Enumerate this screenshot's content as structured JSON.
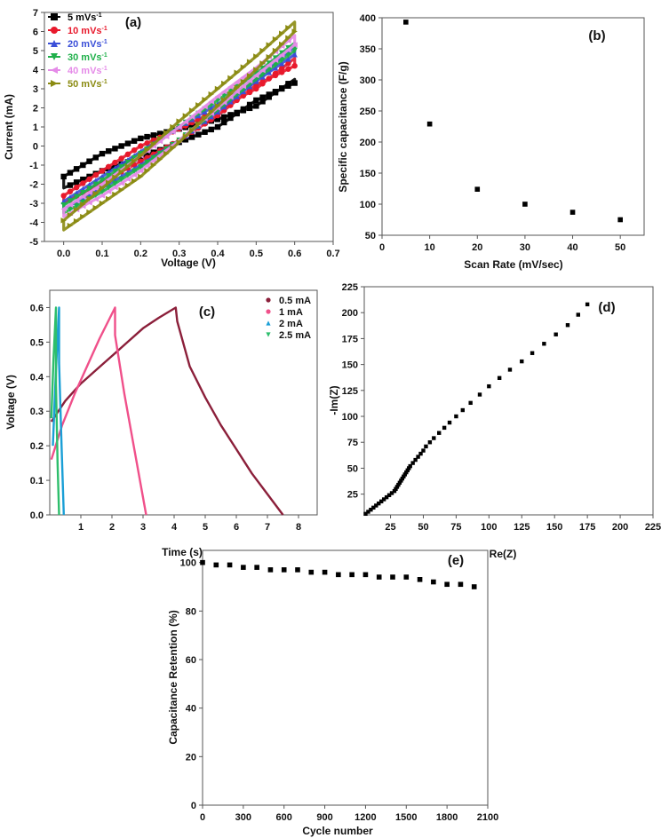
{
  "chart_data": [
    {
      "id": "a",
      "type": "line",
      "panel_label": "(a)",
      "xlabel": "Voltage (V)",
      "ylabel": "Current (mA)",
      "xlim": [
        -0.05,
        0.7
      ],
      "ylim": [
        -5,
        7
      ],
      "xticks": [
        "0.0",
        "0.1",
        "0.2",
        "0.3",
        "0.4",
        "0.5",
        "0.6",
        "0.7"
      ],
      "yticks": [
        "-5",
        "-4",
        "-3",
        "-2",
        "-1",
        "0",
        "1",
        "2",
        "3",
        "4",
        "5",
        "6",
        "7"
      ],
      "legend_position": "top-left",
      "series": [
        {
          "name": "5 mVs",
          "sup": "-1",
          "color": "#000000",
          "marker": "square",
          "upper": [
            [
              0.0,
              -1.6
            ],
            [
              0.1,
              -0.4
            ],
            [
              0.2,
              0.4
            ],
            [
              0.3,
              0.9
            ],
            [
              0.4,
              1.4
            ],
            [
              0.5,
              2.1
            ],
            [
              0.6,
              3.5
            ]
          ],
          "lower": [
            [
              0.6,
              3.3
            ],
            [
              0.5,
              2.4
            ],
            [
              0.4,
              1.0
            ],
            [
              0.3,
              0.2
            ],
            [
              0.2,
              -0.6
            ],
            [
              0.1,
              -1.3
            ],
            [
              0.0,
              -2.2
            ]
          ]
        },
        {
          "name": "10 mVs",
          "sup": "-1",
          "color": "#e8192c",
          "marker": "circle",
          "upper": [
            [
              0.0,
              -2.6
            ],
            [
              0.1,
              -1.3
            ],
            [
              0.2,
              0.0
            ],
            [
              0.3,
              0.9
            ],
            [
              0.4,
              1.9
            ],
            [
              0.5,
              3.0
            ],
            [
              0.6,
              4.6
            ]
          ],
          "lower": [
            [
              0.6,
              4.2
            ],
            [
              0.5,
              3.2
            ],
            [
              0.4,
              1.6
            ],
            [
              0.3,
              0.3
            ],
            [
              0.2,
              -0.8
            ],
            [
              0.1,
              -1.9
            ],
            [
              0.0,
              -3.0
            ]
          ]
        },
        {
          "name": "20 mVs",
          "sup": "-1",
          "color": "#3b4fd8",
          "marker": "triangle-up",
          "upper": [
            [
              0.0,
              -2.9
            ],
            [
              0.1,
              -1.6
            ],
            [
              0.2,
              -0.3
            ],
            [
              0.3,
              1.0
            ],
            [
              0.4,
              2.2
            ],
            [
              0.5,
              3.5
            ],
            [
              0.6,
              5.2
            ]
          ],
          "lower": [
            [
              0.6,
              4.8
            ],
            [
              0.5,
              3.4
            ],
            [
              0.4,
              1.8
            ],
            [
              0.3,
              0.3
            ],
            [
              0.2,
              -1.0
            ],
            [
              0.1,
              -2.2
            ],
            [
              0.0,
              -3.3
            ]
          ]
        },
        {
          "name": "30 mVs",
          "sup": "-1",
          "color": "#1fb04a",
          "marker": "triangle-down",
          "upper": [
            [
              0.0,
              -3.1
            ],
            [
              0.1,
              -1.8
            ],
            [
              0.2,
              -0.4
            ],
            [
              0.3,
              1.0
            ],
            [
              0.4,
              2.4
            ],
            [
              0.5,
              3.8
            ],
            [
              0.6,
              5.4
            ]
          ],
          "lower": [
            [
              0.6,
              5.0
            ],
            [
              0.5,
              3.5
            ],
            [
              0.4,
              1.9
            ],
            [
              0.3,
              0.3
            ],
            [
              0.2,
              -1.1
            ],
            [
              0.1,
              -2.4
            ],
            [
              0.0,
              -3.5
            ]
          ]
        },
        {
          "name": "40 mVs",
          "sup": "-1",
          "color": "#e58be8",
          "marker": "triangle-left",
          "upper": [
            [
              0.0,
              -3.3
            ],
            [
              0.1,
              -2.0
            ],
            [
              0.2,
              -0.5
            ],
            [
              0.3,
              1.0
            ],
            [
              0.4,
              2.6
            ],
            [
              0.5,
              4.1
            ],
            [
              0.6,
              5.8
            ]
          ],
          "lower": [
            [
              0.6,
              5.3
            ],
            [
              0.5,
              3.7
            ],
            [
              0.4,
              2.0
            ],
            [
              0.3,
              0.3
            ],
            [
              0.2,
              -1.3
            ],
            [
              0.1,
              -2.6
            ],
            [
              0.0,
              -3.7
            ]
          ]
        },
        {
          "name": "50 mVs",
          "sup": "-1",
          "color": "#8b8b12",
          "marker": "triangle-right",
          "upper": [
            [
              0.0,
              -3.9
            ],
            [
              0.1,
              -2.2
            ],
            [
              0.2,
              -0.5
            ],
            [
              0.3,
              1.3
            ],
            [
              0.4,
              3.0
            ],
            [
              0.5,
              4.7
            ],
            [
              0.6,
              6.5
            ]
          ],
          "lower": [
            [
              0.6,
              6.0
            ],
            [
              0.5,
              4.0
            ],
            [
              0.4,
              2.1
            ],
            [
              0.3,
              0.2
            ],
            [
              0.2,
              -1.6
            ],
            [
              0.1,
              -3.0
            ],
            [
              0.0,
              -4.4
            ]
          ]
        }
      ]
    },
    {
      "id": "b",
      "type": "scatter",
      "panel_label": "(b)",
      "xlabel": "Scan Rate (mV/sec)",
      "ylabel": "Specific capacitance (F/g)",
      "xlim": [
        0,
        55
      ],
      "ylim": [
        50,
        400
      ],
      "xticks": [
        "0",
        "10",
        "20",
        "30",
        "40",
        "50"
      ],
      "yticks": [
        "50",
        "100",
        "150",
        "200",
        "250",
        "300",
        "350",
        "400"
      ],
      "x": [
        5,
        10,
        20,
        30,
        40,
        50
      ],
      "y": [
        393,
        229,
        124,
        100,
        87,
        75
      ]
    },
    {
      "id": "c",
      "type": "line",
      "panel_label": "(c)",
      "xlabel": "Time (s)",
      "ylabel": "Voltage (V)",
      "xlim": [
        0,
        8.6
      ],
      "ylim": [
        0,
        0.65
      ],
      "xticks": [
        "1",
        "2",
        "3",
        "4",
        "5",
        "6",
        "7",
        "8"
      ],
      "yticks": [
        "0.0",
        "0.1",
        "0.2",
        "0.3",
        "0.4",
        "0.5",
        "0.6"
      ],
      "legend_position": "top-right",
      "series": [
        {
          "name": "0.5 mA",
          "color": "#8b1f3a",
          "marker": "circle",
          "points": [
            [
              0.05,
              0.27
            ],
            [
              0.5,
              0.33
            ],
            [
              1.0,
              0.38
            ],
            [
              1.5,
              0.42
            ],
            [
              2.0,
              0.46
            ],
            [
              2.5,
              0.5
            ],
            [
              3.0,
              0.54
            ],
            [
              3.5,
              0.57
            ],
            [
              4.05,
              0.6
            ],
            [
              4.1,
              0.56
            ],
            [
              4.5,
              0.43
            ],
            [
              5.0,
              0.34
            ],
            [
              5.5,
              0.26
            ],
            [
              6.0,
              0.19
            ],
            [
              6.5,
              0.12
            ],
            [
              7.0,
              0.06
            ],
            [
              7.5,
              0.0
            ]
          ]
        },
        {
          "name": "1 mA",
          "color": "#f0508a",
          "marker": "circle",
          "points": [
            [
              0.05,
              0.16
            ],
            [
              0.4,
              0.26
            ],
            [
              0.8,
              0.35
            ],
            [
              1.2,
              0.43
            ],
            [
              1.6,
              0.51
            ],
            [
              2.1,
              0.6
            ],
            [
              2.1,
              0.52
            ],
            [
              2.4,
              0.35
            ],
            [
              2.7,
              0.2
            ],
            [
              3.1,
              0.0
            ]
          ]
        },
        {
          "name": "2 mA",
          "color": "#1a9fd6",
          "marker": "triangle-up",
          "points": [
            [
              0.1,
              0.2
            ],
            [
              0.2,
              0.42
            ],
            [
              0.3,
              0.6
            ],
            [
              0.3,
              0.44
            ],
            [
              0.38,
              0.2
            ],
            [
              0.45,
              0.0
            ]
          ]
        },
        {
          "name": "2.5 mA",
          "color": "#2dbe6c",
          "marker": "triangle-down",
          "points": [
            [
              0.05,
              0.28
            ],
            [
              0.12,
              0.45
            ],
            [
              0.2,
              0.6
            ],
            [
              0.2,
              0.38
            ],
            [
              0.25,
              0.15
            ],
            [
              0.3,
              0.0
            ]
          ]
        }
      ]
    },
    {
      "id": "d",
      "type": "scatter",
      "panel_label": "(d)",
      "xlabel": "Re(Z)",
      "ylabel": "-Im(Z)",
      "xlim": [
        5,
        225
      ],
      "ylim": [
        5,
        225
      ],
      "xticks": [
        "25",
        "50",
        "75",
        "100",
        "125",
        "150",
        "175",
        "200",
        "225"
      ],
      "yticks": [
        "25",
        "50",
        "75",
        "100",
        "125",
        "150",
        "175",
        "200",
        "225"
      ],
      "x": [
        6,
        8,
        10,
        12,
        14,
        16,
        18,
        20,
        22,
        24,
        26,
        28,
        29,
        30,
        31,
        32,
        33,
        34,
        35,
        36,
        37,
        38,
        39,
        40,
        42,
        44,
        46,
        48,
        50,
        52,
        55,
        58,
        62,
        66,
        70,
        75,
        80,
        86,
        93,
        100,
        108,
        116,
        125,
        133,
        142,
        151,
        160,
        168,
        175
      ],
      "y": [
        6,
        8,
        10,
        12,
        14,
        16,
        18,
        20,
        22,
        24,
        26,
        28,
        30,
        32,
        34,
        36,
        38,
        40,
        42,
        44,
        46,
        48,
        50,
        52,
        55,
        58,
        61,
        64,
        67,
        71,
        75,
        79,
        84,
        89,
        94,
        100,
        106,
        113,
        121,
        129,
        137,
        145,
        153,
        161,
        170,
        179,
        188,
        198,
        208
      ]
    },
    {
      "id": "e",
      "type": "scatter",
      "panel_label": "(e)",
      "xlabel": "Cycle number",
      "ylabel": "Capacitance Retention (%)",
      "xlim": [
        0,
        2100
      ],
      "ylim": [
        0,
        105
      ],
      "xticks": [
        "0",
        "300",
        "600",
        "900",
        "1200",
        "1500",
        "1800",
        "2100"
      ],
      "yticks": [
        "0",
        "20",
        "40",
        "60",
        "80",
        "100"
      ],
      "x": [
        0,
        100,
        200,
        300,
        400,
        500,
        600,
        700,
        800,
        900,
        1000,
        1100,
        1200,
        1300,
        1400,
        1500,
        1600,
        1700,
        1800,
        1900,
        2000
      ],
      "y": [
        100,
        99,
        99,
        98,
        98,
        97,
        97,
        97,
        96,
        96,
        95,
        95,
        95,
        94,
        94,
        94,
        93,
        92,
        91,
        91,
        90
      ]
    }
  ]
}
